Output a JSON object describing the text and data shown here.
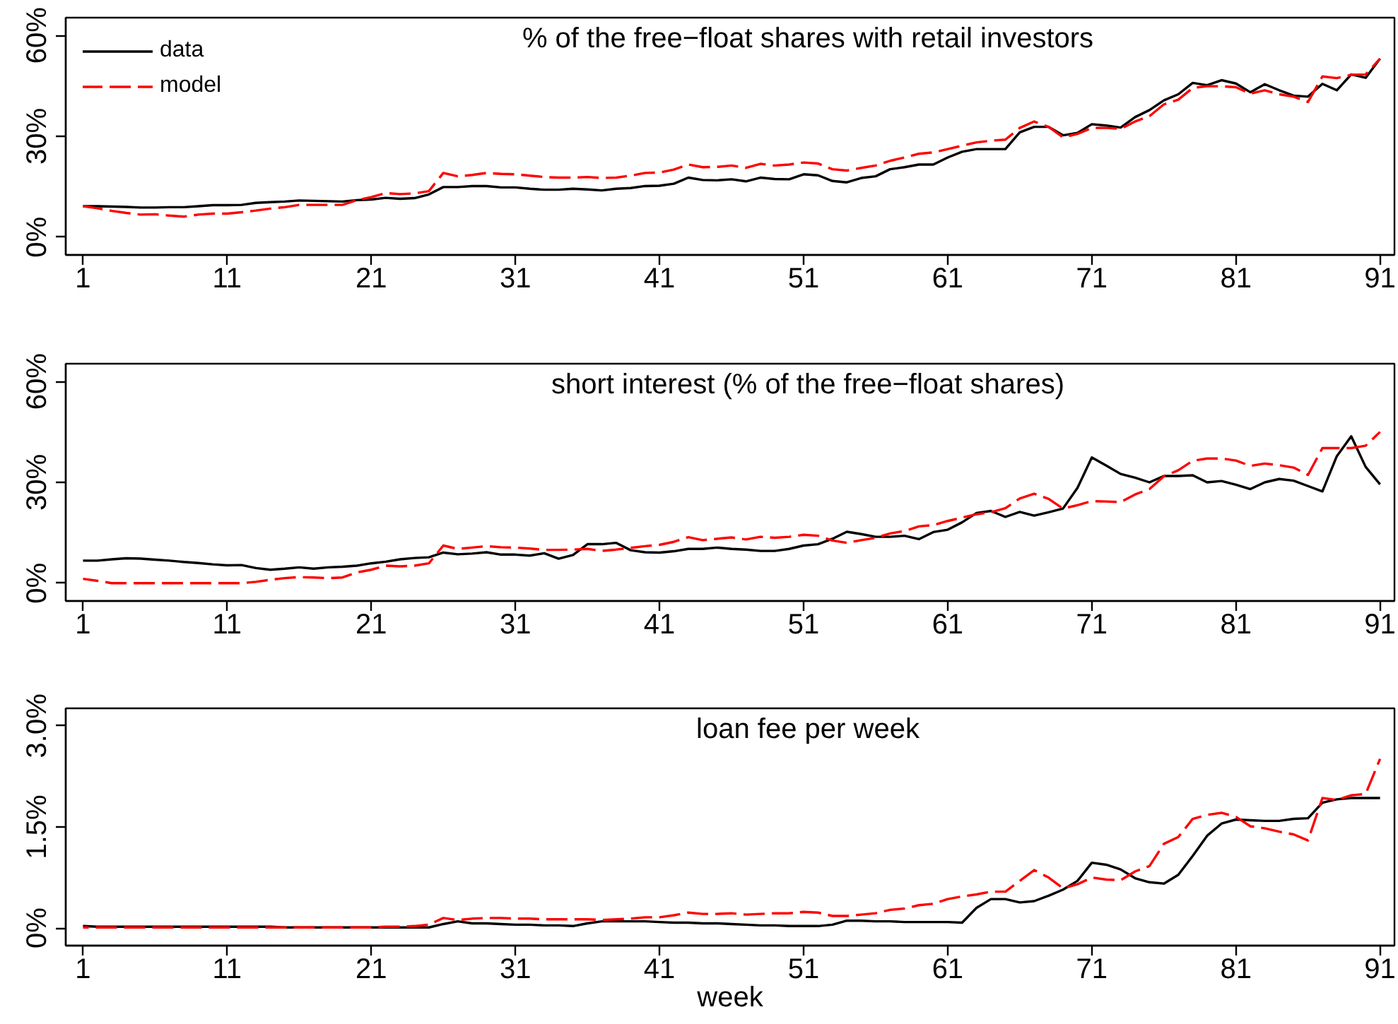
{
  "chart_data": [
    {
      "type": "line",
      "title": "% of the free−float shares with retail investors",
      "legend": "top left",
      "x": [
        1,
        2,
        3,
        4,
        5,
        6,
        7,
        8,
        9,
        10,
        11,
        12,
        13,
        14,
        15,
        16,
        17,
        18,
        19,
        20,
        21,
        22,
        23,
        24,
        25,
        26,
        27,
        28,
        29,
        30,
        31,
        32,
        33,
        34,
        35,
        36,
        37,
        38,
        39,
        40,
        41,
        42,
        43,
        44,
        45,
        46,
        47,
        48,
        49,
        50,
        51,
        52,
        53,
        54,
        55,
        56,
        57,
        58,
        59,
        60,
        61,
        62,
        63,
        64,
        65,
        66,
        67,
        68,
        69,
        70,
        71,
        72,
        73,
        74,
        75,
        76,
        77,
        78,
        79,
        80,
        81,
        82,
        83,
        84,
        85,
        86,
        87,
        88,
        89,
        90,
        91
      ],
      "xlim": [
        -0.2,
        92
      ],
      "xticks": [
        1,
        11,
        21,
        31,
        41,
        51,
        61,
        71,
        81,
        91
      ],
      "ylim": [
        -5.3,
        65.3
      ],
      "yticks": [
        {
          "value": 0,
          "label": "0%"
        },
        {
          "value": 30,
          "label": "30%"
        },
        {
          "value": 60,
          "label": "60%"
        }
      ],
      "series": [
        {
          "name": "data",
          "color": "#000000",
          "line_style": "solid",
          "values": [
            9.2,
            9.2,
            9.1,
            9.0,
            8.8,
            8.8,
            8.9,
            8.9,
            9.2,
            9.5,
            9.5,
            9.6,
            10.2,
            10.4,
            10.6,
            10.9,
            10.8,
            10.7,
            10.6,
            11.0,
            11.2,
            11.7,
            11.4,
            11.6,
            12.7,
            14.9,
            14.9,
            15.2,
            15.2,
            14.8,
            14.8,
            14.4,
            14.1,
            14.1,
            14.4,
            14.2,
            13.9,
            14.4,
            14.6,
            15.2,
            15.3,
            15.9,
            17.7,
            17.0,
            16.9,
            17.2,
            16.6,
            17.7,
            17.3,
            17.2,
            18.7,
            18.4,
            16.7,
            16.3,
            17.6,
            18.1,
            20.2,
            20.8,
            21.6,
            21.6,
            23.7,
            25.4,
            26.2,
            26.2,
            26.2,
            31.2,
            32.8,
            32.8,
            30.3,
            31.0,
            33.6,
            33.2,
            32.6,
            35.7,
            37.8,
            40.7,
            42.5,
            45.9,
            45.2,
            46.7,
            45.7,
            43.1,
            45.5,
            43.7,
            42.1,
            41.8,
            45.6,
            43.7,
            48.4,
            47.4,
            53.1
          ]
        },
        {
          "name": "model",
          "color": "#ff0000",
          "line_style": "dashed",
          "values": [
            9.2,
            8.6,
            7.8,
            7.2,
            6.7,
            6.8,
            6.4,
            6.1,
            6.7,
            7.0,
            7.0,
            7.4,
            7.9,
            8.5,
            8.9,
            9.6,
            9.6,
            9.6,
            9.6,
            11.0,
            11.9,
            13.1,
            12.8,
            13.0,
            13.7,
            19.1,
            18.1,
            18.5,
            19.1,
            18.8,
            18.7,
            18.3,
            17.9,
            17.7,
            17.7,
            17.9,
            17.6,
            17.7,
            18.3,
            19.1,
            19.2,
            20.1,
            21.6,
            20.8,
            20.9,
            21.3,
            20.6,
            21.8,
            21.3,
            21.6,
            22.2,
            21.9,
            20.2,
            19.8,
            20.6,
            21.3,
            22.7,
            23.7,
            24.8,
            25.2,
            26.2,
            27.2,
            28.2,
            28.7,
            29.0,
            32.5,
            34.4,
            32.8,
            29.7,
            30.7,
            32.5,
            32.5,
            32.2,
            34.4,
            36.0,
            39.5,
            40.9,
            44.4,
            44.9,
            44.9,
            44.6,
            42.7,
            43.7,
            42.5,
            41.8,
            40.2,
            47.8,
            47.3,
            48.3,
            48.4,
            53.1
          ]
        }
      ]
    },
    {
      "type": "line",
      "title": "short interest (% of the free−float shares)",
      "x": [
        1,
        2,
        3,
        4,
        5,
        6,
        7,
        8,
        9,
        10,
        11,
        12,
        13,
        14,
        15,
        16,
        17,
        18,
        19,
        20,
        21,
        22,
        23,
        24,
        25,
        26,
        27,
        28,
        29,
        30,
        31,
        32,
        33,
        34,
        35,
        36,
        37,
        38,
        39,
        40,
        41,
        42,
        43,
        44,
        45,
        46,
        47,
        48,
        49,
        50,
        51,
        52,
        53,
        54,
        55,
        56,
        57,
        58,
        59,
        60,
        61,
        62,
        63,
        64,
        65,
        66,
        67,
        68,
        69,
        70,
        71,
        72,
        73,
        74,
        75,
        76,
        77,
        78,
        79,
        80,
        81,
        82,
        83,
        84,
        85,
        86,
        87,
        88,
        89,
        90,
        91
      ],
      "xlim": [
        -0.2,
        92
      ],
      "xticks": [
        1,
        11,
        21,
        31,
        41,
        51,
        61,
        71,
        81,
        91
      ],
      "ylim": [
        -5.3,
        65.3
      ],
      "yticks": [
        {
          "value": 0,
          "label": "0%"
        },
        {
          "value": 30,
          "label": "30%"
        },
        {
          "value": 60,
          "label": "60%"
        }
      ],
      "series": [
        {
          "color": "#000000",
          "line_style": "solid",
          "values": [
            6.7,
            6.7,
            7.1,
            7.4,
            7.3,
            7.0,
            6.7,
            6.3,
            6.0,
            5.6,
            5.3,
            5.4,
            4.5,
            4.0,
            4.3,
            4.7,
            4.3,
            4.7,
            4.9,
            5.2,
            5.9,
            6.4,
            7.1,
            7.5,
            7.7,
            9.1,
            8.6,
            8.8,
            9.2,
            8.5,
            8.5,
            8.2,
            8.9,
            7.3,
            8.4,
            11.6,
            11.6,
            12.0,
            9.8,
            9.2,
            9.1,
            9.5,
            10.2,
            10.2,
            10.6,
            10.2,
            10.0,
            9.6,
            9.6,
            10.2,
            11.2,
            11.6,
            13.2,
            15.3,
            14.6,
            13.8,
            13.8,
            14.1,
            13.1,
            15.2,
            15.9,
            18.1,
            20.9,
            21.5,
            19.7,
            21.2,
            20.1,
            21.1,
            22.2,
            28.3,
            37.4,
            35.0,
            32.5,
            31.4,
            30.0,
            31.9,
            31.9,
            32.1,
            30.0,
            30.4,
            29.3,
            28.0,
            30.0,
            31.0,
            30.5,
            28.9,
            27.3,
            37.8,
            43.7,
            34.6,
            29.4
          ]
        },
        {
          "color": "#ff0000",
          "line_style": "dashed",
          "values": [
            1.3,
            0.7,
            0.0,
            0.0,
            0.0,
            0.0,
            0.0,
            0.0,
            0.0,
            0.0,
            0.0,
            0.0,
            0.4,
            1.0,
            1.5,
            1.8,
            1.7,
            1.5,
            1.7,
            3.2,
            4.0,
            5.2,
            5.0,
            5.2,
            5.9,
            11.2,
            10.2,
            10.6,
            11.0,
            10.7,
            10.6,
            10.3,
            9.9,
            9.9,
            10.0,
            10.2,
            9.6,
            10.0,
            10.5,
            11.0,
            11.4,
            12.3,
            13.7,
            12.8,
            13.2,
            13.6,
            13.0,
            13.8,
            13.5,
            13.8,
            14.4,
            14.1,
            12.7,
            12.0,
            12.8,
            13.5,
            14.8,
            15.5,
            16.9,
            17.3,
            18.5,
            19.5,
            20.5,
            21.1,
            22.3,
            25.2,
            26.6,
            25.1,
            22.2,
            23.2,
            24.4,
            24.3,
            24.1,
            26.4,
            28.0,
            31.8,
            33.6,
            36.4,
            37.1,
            37.1,
            36.5,
            34.9,
            35.6,
            35.1,
            34.4,
            32.2,
            40.2,
            40.2,
            40.2,
            40.9,
            45.0
          ]
        }
      ]
    },
    {
      "type": "line",
      "title": "loan fee per week",
      "xlabel": "week",
      "x": [
        1,
        2,
        3,
        4,
        5,
        6,
        7,
        8,
        9,
        10,
        11,
        12,
        13,
        14,
        15,
        16,
        17,
        18,
        19,
        20,
        21,
        22,
        23,
        24,
        25,
        26,
        27,
        28,
        29,
        30,
        31,
        32,
        33,
        34,
        35,
        36,
        37,
        38,
        39,
        40,
        41,
        42,
        43,
        44,
        45,
        46,
        47,
        48,
        49,
        50,
        51,
        52,
        53,
        54,
        55,
        56,
        57,
        58,
        59,
        60,
        61,
        62,
        63,
        64,
        65,
        66,
        67,
        68,
        69,
        70,
        71,
        72,
        73,
        74,
        75,
        76,
        77,
        78,
        79,
        80,
        81,
        82,
        83,
        84,
        85,
        86,
        87,
        88,
        89,
        90,
        91
      ],
      "xlim": [
        -0.2,
        92
      ],
      "xticks": [
        1,
        11,
        21,
        31,
        41,
        51,
        61,
        71,
        81,
        91
      ],
      "ylim": [
        -0.26,
        3.26
      ],
      "yticks": [
        {
          "value": 0,
          "label": "0%"
        },
        {
          "value": 1.5,
          "label": "1.5%"
        },
        {
          "value": 3,
          "label": "3.0%"
        }
      ],
      "series": [
        {
          "color": "#000000",
          "line_style": "solid",
          "values": [
            0.03,
            0.02,
            0.02,
            0.02,
            0.02,
            0.02,
            0.02,
            0.02,
            0.02,
            0.02,
            0.02,
            0.02,
            0.02,
            0.02,
            0.01,
            0.01,
            0.01,
            0.01,
            0.01,
            0.01,
            0.01,
            0.01,
            0.01,
            0.01,
            0.01,
            0.06,
            0.1,
            0.07,
            0.07,
            0.06,
            0.05,
            0.05,
            0.04,
            0.04,
            0.03,
            0.07,
            0.1,
            0.1,
            0.1,
            0.1,
            0.09,
            0.08,
            0.08,
            0.07,
            0.07,
            0.06,
            0.05,
            0.04,
            0.04,
            0.03,
            0.03,
            0.03,
            0.05,
            0.11,
            0.11,
            0.1,
            0.1,
            0.09,
            0.09,
            0.09,
            0.09,
            0.08,
            0.3,
            0.43,
            0.43,
            0.38,
            0.4,
            0.48,
            0.57,
            0.7,
            0.97,
            0.94,
            0.87,
            0.74,
            0.68,
            0.66,
            0.79,
            1.07,
            1.37,
            1.55,
            1.61,
            1.6,
            1.59,
            1.59,
            1.62,
            1.63,
            1.86,
            1.91,
            1.93,
            1.93,
            1.93
          ]
        },
        {
          "color": "#ff0000",
          "line_style": "dashed",
          "values": [
            0.01,
            0.01,
            0.01,
            0.01,
            0.01,
            0.01,
            0.01,
            0.01,
            0.01,
            0.01,
            0.01,
            0.01,
            0.01,
            0.01,
            0.01,
            0.01,
            0.01,
            0.01,
            0.01,
            0.01,
            0.01,
            0.02,
            0.02,
            0.03,
            0.05,
            0.15,
            0.12,
            0.14,
            0.15,
            0.15,
            0.14,
            0.14,
            0.13,
            0.13,
            0.13,
            0.13,
            0.12,
            0.13,
            0.14,
            0.16,
            0.16,
            0.19,
            0.23,
            0.21,
            0.21,
            0.22,
            0.2,
            0.21,
            0.22,
            0.22,
            0.24,
            0.23,
            0.18,
            0.18,
            0.2,
            0.22,
            0.27,
            0.29,
            0.34,
            0.36,
            0.43,
            0.47,
            0.5,
            0.54,
            0.54,
            0.7,
            0.86,
            0.75,
            0.59,
            0.65,
            0.75,
            0.72,
            0.71,
            0.84,
            0.92,
            1.25,
            1.35,
            1.62,
            1.68,
            1.71,
            1.65,
            1.51,
            1.48,
            1.43,
            1.39,
            1.3,
            1.93,
            1.9,
            1.97,
            1.99,
            2.51
          ]
        }
      ]
    }
  ]
}
